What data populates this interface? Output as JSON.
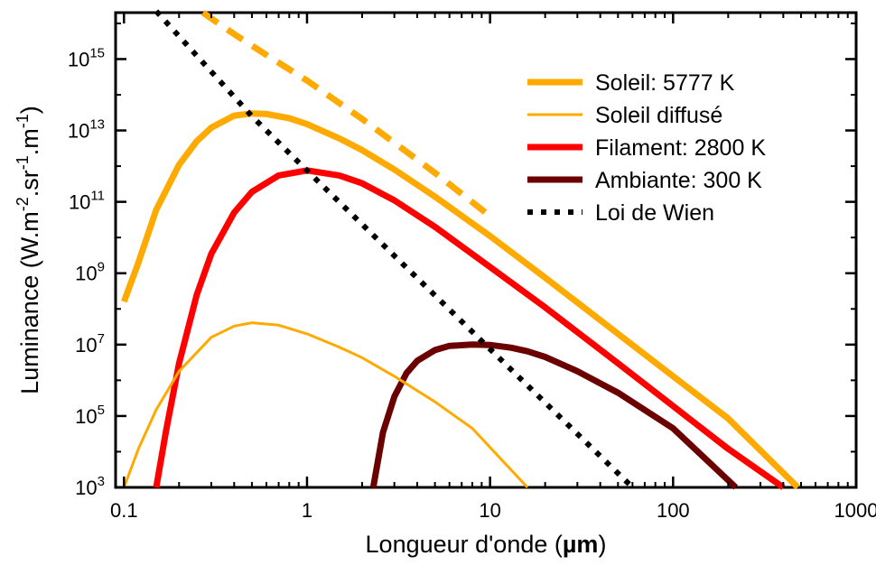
{
  "chart_data": {
    "type": "line",
    "xlabel_main": "Longueur d'onde (",
    "xlabel_unit": "µm",
    "xlabel_end": ")",
    "ylabel_main": "Luminance (W.m",
    "ylabel_sup1": "-2",
    "ylabel_mid1": ".sr",
    "ylabel_sup2": "-1",
    "ylabel_mid2": ".m",
    "ylabel_sup3": "-1",
    "ylabel_end": ")",
    "x_scale": "log",
    "y_scale": "log",
    "xlim": [
      0.09,
      1000
    ],
    "ylim": [
      1000,
      2e+16
    ],
    "x_ticks": [
      {
        "value": 0.1,
        "label": "0.1"
      },
      {
        "value": 1,
        "label": "1"
      },
      {
        "value": 10,
        "label": "10"
      },
      {
        "value": 100,
        "label": "100"
      },
      {
        "value": 1000,
        "label": "1000"
      }
    ],
    "y_ticks": [
      {
        "value": 1000.0,
        "base": "10",
        "exp": "3"
      },
      {
        "value": 100000.0,
        "base": "10",
        "exp": "5"
      },
      {
        "value": 10000000.0,
        "base": "10",
        "exp": "7"
      },
      {
        "value": 1000000000.0,
        "base": "10",
        "exp": "9"
      },
      {
        "value": 100000000000.0,
        "base": "10",
        "exp": "11"
      },
      {
        "value": 10000000000000.0,
        "base": "10",
        "exp": "13"
      },
      {
        "value": 1000000000000000.0,
        "base": "10",
        "exp": "15"
      }
    ],
    "legend_position": "top-right",
    "series": [
      {
        "name": "Soleil: 5777 K",
        "color": "#FFAA00",
        "style": "solid-thick",
        "x": [
          0.1,
          0.12,
          0.15,
          0.2,
          0.25,
          0.3,
          0.4,
          0.5,
          0.6,
          0.8,
          1,
          1.5,
          2,
          3,
          5,
          10,
          20,
          50,
          100,
          200,
          480
        ],
        "y": [
          160000000.0,
          2000000000.0,
          60000000000.0,
          1100000000000.0,
          5000000000000.0,
          12000000000000.0,
          26000000000000.0,
          30000000000000.0,
          29000000000000.0,
          22000000000000.0,
          15000000000000.0,
          6000000000000.0,
          2800000000000.0,
          800000000000.0,
          140000000000.0,
          11000000000.0,
          750000000.0,
          20000000.0,
          1300000.0,
          85000.0,
          1000.0
        ]
      },
      {
        "name": "Soleil diffusé",
        "color": "#FFAA00",
        "style": "solid-thin",
        "x": [
          0.1,
          0.12,
          0.15,
          0.2,
          0.3,
          0.4,
          0.5,
          0.7,
          1,
          1.5,
          2,
          3,
          5,
          8,
          16
        ],
        "y": [
          1000.0,
          12000.0,
          150000.0,
          1800000.0,
          16000000.0,
          33000000.0,
          41000000.0,
          35000000.0,
          20000000.0,
          8500000.0,
          4300000.0,
          1300000.0,
          250000.0,
          45000.0,
          1000.0
        ]
      },
      {
        "name": "Filament: 2800 K",
        "color": "#FF0000",
        "style": "solid-thick",
        "x": [
          0.15,
          0.17,
          0.2,
          0.25,
          0.3,
          0.4,
          0.5,
          0.7,
          1,
          1.5,
          2,
          3,
          5,
          10,
          20,
          50,
          100,
          200,
          400
        ],
        "y": [
          1000.0,
          40000.0,
          3000000.0,
          250000000.0,
          3500000000.0,
          50000000000.0,
          190000000000.0,
          550000000000.0,
          760000000000.0,
          550000000000.0,
          330000000000.0,
          110000000000.0,
          20000000000.0,
          1500000000.0,
          110000000.0,
          3000000.0,
          190000.0,
          12000.0,
          1000.0
        ]
      },
      {
        "name": "Ambiante: 300 K",
        "color": "#6A0000",
        "style": "solid-thick",
        "x": [
          2.3,
          2.6,
          3,
          3.5,
          4,
          5,
          6,
          8,
          10,
          13,
          16,
          20,
          30,
          50,
          100,
          220
        ],
        "y": [
          1000.0,
          35000.0,
          350000.0,
          1600000.0,
          3500000.0,
          7000000.0,
          9200000.0,
          10000000.0,
          9800000.0,
          8200000.0,
          6500000.0,
          4500000.0,
          1800000.0,
          450000.0,
          45000.0,
          1000.0
        ]
      },
      {
        "name": "Loi de Wien",
        "color": "#000000",
        "style": "dotted",
        "x": [
          0.15,
          0.5,
          1,
          10,
          60
        ],
        "y": [
          2.2e+16,
          25000000000000.0,
          750000000000.0,
          7500000.0,
          1000.0
        ]
      },
      {
        "name": "",
        "legend": false,
        "color": "#FFAA00",
        "style": "dashed-thick",
        "x": [
          0.27,
          0.4,
          0.6,
          1,
          2,
          5,
          10
        ],
        "y": [
          2e+16,
          5000000000000000.0,
          1300000000000000.0,
          250000000000000.0,
          21000000000000.0,
          650000000000.0,
          40000000000.0
        ]
      }
    ]
  }
}
